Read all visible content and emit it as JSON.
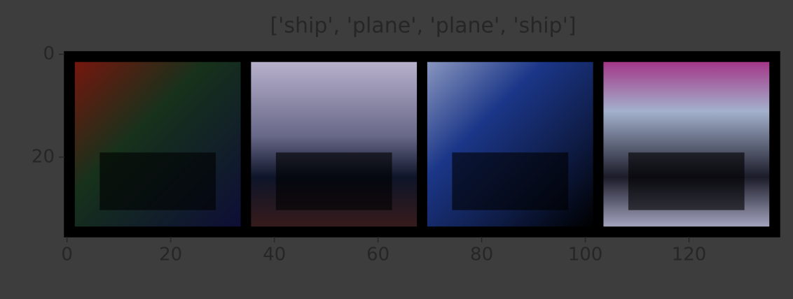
{
  "chart_data": {
    "type": "image",
    "title": "['ship', 'plane', 'plane', 'ship']",
    "xlim": [
      -0.5,
      137.5
    ],
    "ylim": [
      35.5,
      -0.5
    ],
    "xticks": [
      0,
      20,
      40,
      60,
      80,
      100,
      120
    ],
    "yticks": [
      0,
      20
    ]
  }
}
